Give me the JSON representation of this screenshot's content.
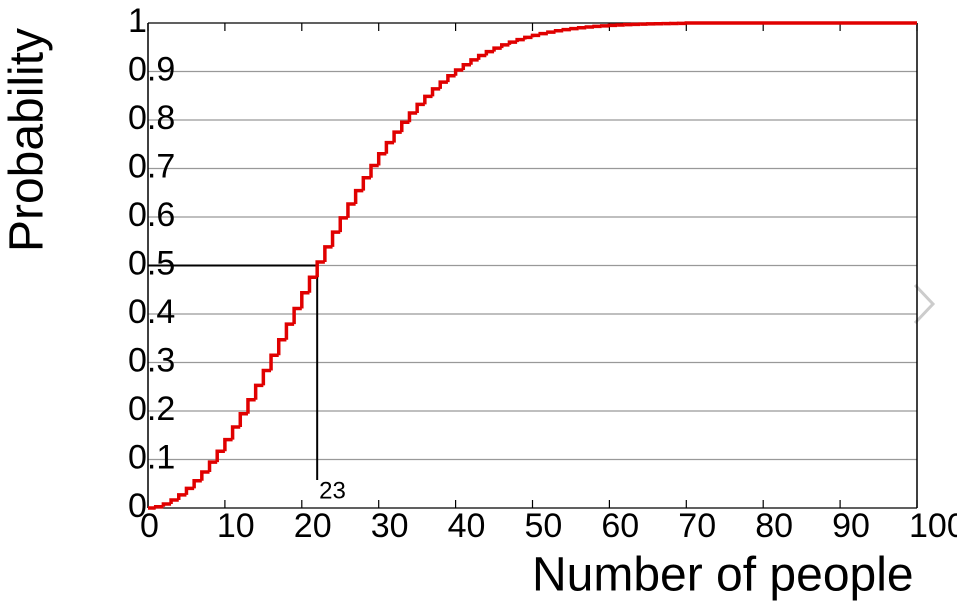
{
  "chart_data": {
    "type": "step",
    "step": "pre",
    "x_label": "Number of people",
    "y_label": "Probability",
    "x": [
      1,
      2,
      3,
      4,
      5,
      6,
      7,
      8,
      9,
      10,
      11,
      12,
      13,
      14,
      15,
      16,
      17,
      18,
      19,
      20,
      21,
      22,
      23,
      24,
      25,
      26,
      27,
      28,
      29,
      30,
      31,
      32,
      33,
      34,
      35,
      36,
      37,
      38,
      39,
      40,
      41,
      42,
      43,
      44,
      45,
      46,
      47,
      48,
      49,
      50,
      51,
      52,
      53,
      54,
      55,
      56,
      57,
      58,
      59,
      60,
      61,
      62,
      63,
      64,
      65,
      66,
      67,
      68,
      69,
      70,
      100
    ],
    "values": [
      0,
      0.0027,
      0.0082,
      0.0164,
      0.0271,
      0.0405,
      0.0562,
      0.0743,
      0.0946,
      0.1169,
      0.1411,
      0.167,
      0.1944,
      0.2231,
      0.2529,
      0.2836,
      0.315,
      0.3469,
      0.3791,
      0.4114,
      0.4437,
      0.4757,
      0.5073,
      0.5383,
      0.5687,
      0.5982,
      0.6269,
      0.6545,
      0.681,
      0.7063,
      0.7305,
      0.7533,
      0.775,
      0.7953,
      0.8144,
      0.8322,
      0.8487,
      0.8641,
      0.8782,
      0.8912,
      0.9032,
      0.914,
      0.9239,
      0.9329,
      0.941,
      0.9483,
      0.9548,
      0.9606,
      0.9658,
      0.9704,
      0.9744,
      0.978,
      0.9811,
      0.9839,
      0.9863,
      0.9883,
      0.9901,
      0.9917,
      0.993,
      0.9941,
      0.9951,
      0.9959,
      0.9967,
      0.9972,
      0.9977,
      0.9981,
      0.9984,
      0.9987,
      0.999,
      0.9992,
      1
    ],
    "color": "#e00000",
    "xlim": [
      0,
      100
    ],
    "ylim": [
      0,
      1
    ],
    "xticks": [
      0,
      10,
      20,
      30,
      40,
      50,
      60,
      70,
      80,
      90,
      100
    ],
    "yticks": [
      0,
      0.1,
      0.2,
      0.3,
      0.4,
      0.5,
      0.6,
      0.7,
      0.8,
      0.9,
      1
    ],
    "grid": true,
    "annotation": {
      "text": "23",
      "x": 22,
      "y": 0.5
    }
  }
}
